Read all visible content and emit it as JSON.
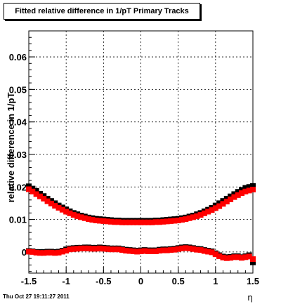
{
  "chart_data": {
    "type": "scatter",
    "title": "Fitted relative difference in 1/pT  Primary Tracks",
    "xlabel": "η",
    "ylabel": "relative difference in 1/pT",
    "xlim": [
      -1.5,
      1.5
    ],
    "ylim": [
      -0.0065,
      0.068
    ],
    "x_ticks": [
      "-1.5",
      "-1",
      "-0.5",
      "0",
      "0.5",
      "1",
      "1.5"
    ],
    "y_ticks": [
      "0",
      "0.01",
      "0.02",
      "0.03",
      "0.04",
      "0.05",
      "0.06"
    ],
    "grid": true,
    "series": [
      {
        "color": "#000000",
        "marker": "square",
        "x": [
          -1.5,
          -1.45,
          -1.4,
          -1.35,
          -1.3,
          -1.25,
          -1.2,
          -1.15,
          -1.1,
          -1.05,
          -1.0,
          -0.95,
          -0.9,
          -0.85,
          -0.8,
          -0.75,
          -0.7,
          -0.65,
          -0.6,
          -0.55,
          -0.5,
          -0.45,
          -0.4,
          -0.35,
          -0.3,
          -0.25,
          -0.2,
          -0.15,
          -0.1,
          -0.05,
          0.0,
          0.05,
          0.1,
          0.15,
          0.2,
          0.25,
          0.3,
          0.35,
          0.4,
          0.45,
          0.5,
          0.55,
          0.6,
          0.65,
          0.7,
          0.75,
          0.8,
          0.85,
          0.9,
          0.95,
          1.0,
          1.05,
          1.1,
          1.15,
          1.2,
          1.25,
          1.3,
          1.35,
          1.4,
          1.45,
          1.5
        ],
        "y": [
          0.0202,
          0.0195,
          0.0188,
          0.0179,
          0.0172,
          0.0164,
          0.0157,
          0.015,
          0.0143,
          0.0137,
          0.0131,
          0.0125,
          0.012,
          0.0116,
          0.0112,
          0.0109,
          0.0106,
          0.0104,
          0.0102,
          0.0101,
          0.01,
          0.0099,
          0.0098,
          0.0097,
          0.0097,
          0.0096,
          0.0096,
          0.0096,
          0.0096,
          0.0096,
          0.0096,
          0.0096,
          0.0096,
          0.0096,
          0.0097,
          0.0097,
          0.0098,
          0.0099,
          0.01,
          0.0101,
          0.0102,
          0.0104,
          0.0106,
          0.0109,
          0.0112,
          0.0116,
          0.012,
          0.0125,
          0.013,
          0.0136,
          0.0143,
          0.015,
          0.0157,
          0.0164,
          0.0171,
          0.0178,
          0.0185,
          0.0191,
          0.0197,
          0.02,
          0.0203
        ]
      },
      {
        "color": "#ff0000",
        "marker": "square",
        "x": [
          -1.5,
          -1.45,
          -1.4,
          -1.35,
          -1.3,
          -1.25,
          -1.2,
          -1.15,
          -1.1,
          -1.05,
          -1.0,
          -0.95,
          -0.9,
          -0.85,
          -0.8,
          -0.75,
          -0.7,
          -0.65,
          -0.6,
          -0.55,
          -0.5,
          -0.45,
          -0.4,
          -0.35,
          -0.3,
          -0.25,
          -0.2,
          -0.15,
          -0.1,
          -0.05,
          0.0,
          0.05,
          0.1,
          0.15,
          0.2,
          0.25,
          0.3,
          0.35,
          0.4,
          0.45,
          0.5,
          0.55,
          0.6,
          0.65,
          0.7,
          0.75,
          0.8,
          0.85,
          0.9,
          0.95,
          1.0,
          1.05,
          1.1,
          1.15,
          1.2,
          1.25,
          1.3,
          1.35,
          1.4,
          1.45,
          1.5
        ],
        "y": [
          0.0193,
          0.0186,
          0.0178,
          0.0171,
          0.0164,
          0.0156,
          0.0149,
          0.0142,
          0.0136,
          0.013,
          0.0124,
          0.0119,
          0.0114,
          0.011,
          0.0107,
          0.0104,
          0.0101,
          0.0099,
          0.0097,
          0.0096,
          0.0095,
          0.0094,
          0.0093,
          0.0092,
          0.0092,
          0.0091,
          0.0091,
          0.0091,
          0.0091,
          0.0091,
          0.0091,
          0.0091,
          0.0091,
          0.0091,
          0.0092,
          0.0092,
          0.0093,
          0.0094,
          0.0095,
          0.0096,
          0.0097,
          0.0099,
          0.0101,
          0.0104,
          0.0107,
          0.011,
          0.0114,
          0.0119,
          0.0124,
          0.0129,
          0.0135,
          0.0141,
          0.0148,
          0.0155,
          0.0162,
          0.0169,
          0.0175,
          0.0181,
          0.0186,
          0.0189,
          0.0192
        ]
      },
      {
        "color": "#000000",
        "marker": "square",
        "x": [
          -1.5,
          -1.45,
          -1.4,
          -1.35,
          -1.3,
          -1.25,
          -1.2,
          -1.15,
          -1.1,
          -1.05,
          -1.0,
          -0.95,
          -0.9,
          -0.85,
          -0.8,
          -0.75,
          -0.7,
          -0.65,
          -0.6,
          -0.55,
          -0.5,
          -0.45,
          -0.4,
          -0.35,
          -0.3,
          -0.25,
          -0.2,
          -0.15,
          -0.1,
          -0.05,
          0.0,
          0.05,
          0.1,
          0.15,
          0.2,
          0.25,
          0.3,
          0.35,
          0.4,
          0.45,
          0.5,
          0.55,
          0.6,
          0.65,
          0.7,
          0.75,
          0.8,
          0.85,
          0.9,
          0.95,
          1.0,
          1.05,
          1.1,
          1.15,
          1.2,
          1.25,
          1.3,
          1.35,
          1.4,
          1.45,
          1.5
        ],
        "y": [
          0.0003,
          0.0002,
          0.0,
          0.0,
          0.0,
          0.0001,
          0.0001,
          0.0,
          0.0001,
          0.0004,
          0.0008,
          0.0011,
          0.0012,
          0.0013,
          0.0013,
          0.0014,
          0.0014,
          0.0013,
          0.0013,
          0.0014,
          0.0013,
          0.0012,
          0.0011,
          0.0011,
          0.0011,
          0.0009,
          0.0007,
          0.0006,
          0.0005,
          0.0004,
          0.0005,
          0.0006,
          0.0005,
          0.0005,
          0.0005,
          0.0007,
          0.0008,
          0.0008,
          0.0009,
          0.001,
          0.0012,
          0.0014,
          0.0015,
          0.0014,
          0.0012,
          0.001,
          0.0009,
          0.0006,
          0.0004,
          0.0002,
          -0.0004,
          -0.001,
          -0.0014,
          -0.0016,
          -0.0015,
          -0.0013,
          -0.0013,
          -0.0016,
          -0.0013,
          -0.001,
          -0.0032
        ]
      },
      {
        "color": "#ff0000",
        "marker": "square",
        "x": [
          -1.5,
          -1.45,
          -1.4,
          -1.35,
          -1.3,
          -1.25,
          -1.2,
          -1.15,
          -1.1,
          -1.05,
          -1.0,
          -0.95,
          -0.9,
          -0.85,
          -0.8,
          -0.75,
          -0.7,
          -0.65,
          -0.6,
          -0.55,
          -0.5,
          -0.45,
          -0.4,
          -0.35,
          -0.3,
          -0.25,
          -0.2,
          -0.15,
          -0.1,
          -0.05,
          0.0,
          0.05,
          0.1,
          0.15,
          0.2,
          0.25,
          0.3,
          0.35,
          0.4,
          0.45,
          0.5,
          0.55,
          0.6,
          0.65,
          0.7,
          0.75,
          0.8,
          0.85,
          0.9,
          0.95,
          1.0,
          1.05,
          1.1,
          1.15,
          1.2,
          1.25,
          1.3,
          1.35,
          1.4,
          1.45,
          1.5
        ],
        "y": [
          0.0001,
          0.0,
          -0.0002,
          -0.0003,
          -0.0003,
          -0.0002,
          -0.0002,
          -0.0003,
          -0.0002,
          0.0001,
          0.0004,
          0.0008,
          0.0009,
          0.001,
          0.0011,
          0.0011,
          0.0011,
          0.001,
          0.001,
          0.0011,
          0.001,
          0.0009,
          0.0008,
          0.0008,
          0.0008,
          0.0006,
          0.0004,
          0.0003,
          0.0002,
          0.0001,
          0.0002,
          0.0003,
          0.0002,
          0.0002,
          0.0002,
          0.0004,
          0.0005,
          0.0005,
          0.0006,
          0.0007,
          0.0009,
          0.0011,
          0.0012,
          0.0011,
          0.0009,
          0.0007,
          0.0006,
          0.0003,
          0.0001,
          -0.0001,
          -0.0007,
          -0.0013,
          -0.0017,
          -0.0019,
          -0.0018,
          -0.0016,
          -0.0016,
          -0.0018,
          -0.0016,
          -0.0014,
          -0.0022
        ]
      }
    ]
  },
  "footer": {
    "timestamp": "Thu Oct 27 19:11:27 2011"
  }
}
